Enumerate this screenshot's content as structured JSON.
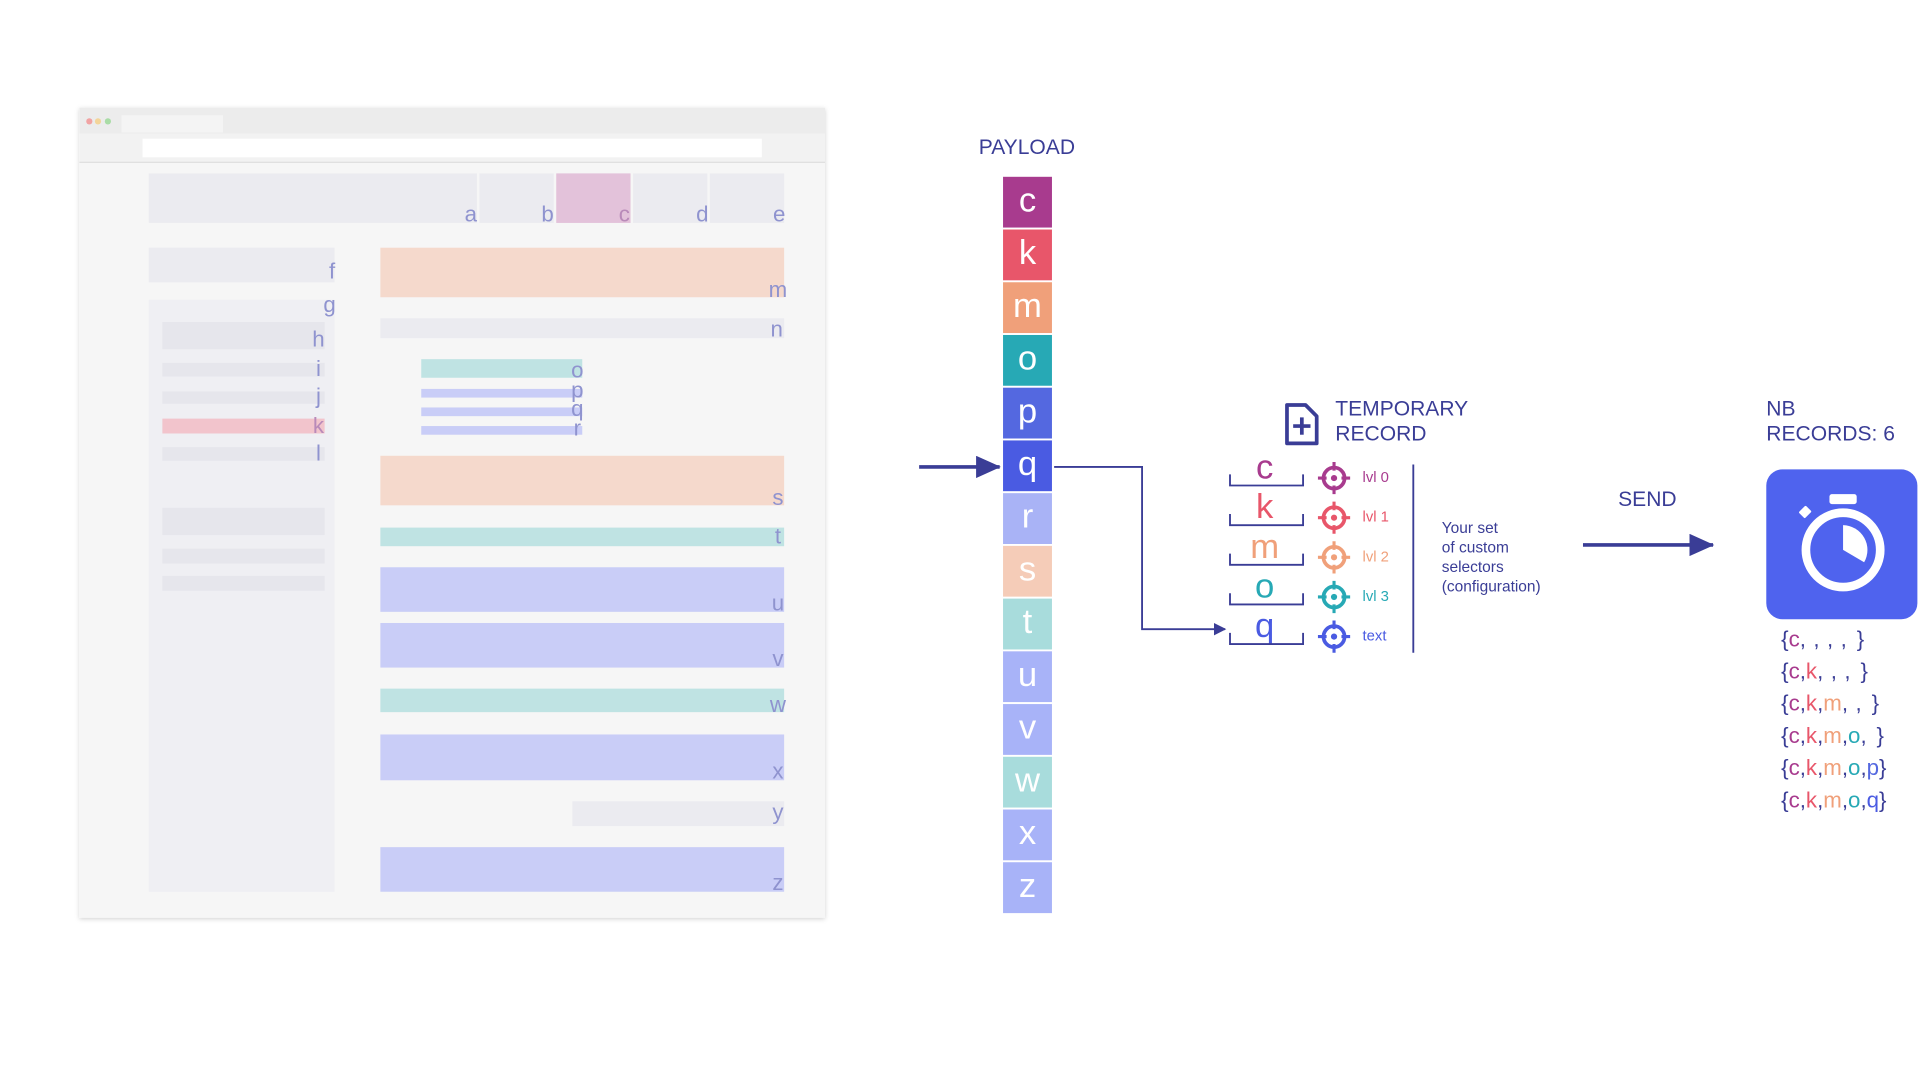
{
  "browser": {
    "labels": [
      "a",
      "b",
      "c",
      "d",
      "e",
      "f",
      "g",
      "h",
      "i",
      "j",
      "k",
      "l",
      "m",
      "n",
      "o",
      "p",
      "q",
      "r",
      "s",
      "t",
      "u",
      "v",
      "w",
      "x",
      "y",
      "z"
    ]
  },
  "payload": {
    "title": "PAYLOAD",
    "items": [
      {
        "letter": "c",
        "color": "#a83b8e"
      },
      {
        "letter": "k",
        "color": "#e8566a"
      },
      {
        "letter": "m",
        "color": "#f0a07a"
      },
      {
        "letter": "o",
        "color": "#27a9b5"
      },
      {
        "letter": "p",
        "color": "#5468e0"
      },
      {
        "letter": "q",
        "color": "#4a5be2"
      },
      {
        "letter": "r",
        "color": "#a9b3f6"
      },
      {
        "letter": "s",
        "color": "#f5ccb8"
      },
      {
        "letter": "t",
        "color": "#a8dcdc"
      },
      {
        "letter": "u",
        "color": "#a8b3f8"
      },
      {
        "letter": "v",
        "color": "#a8b3f8"
      },
      {
        "letter": "w",
        "color": "#a8dcdc"
      },
      {
        "letter": "x",
        "color": "#a8b3f8"
      },
      {
        "letter": "z",
        "color": "#a8b3f8"
      }
    ]
  },
  "temporary_record": {
    "title_lines": [
      "TEMPORARY",
      "RECORD"
    ],
    "rows": [
      {
        "letter": "c",
        "selector": "lvl 0"
      },
      {
        "letter": "k",
        "selector": "lvl 1"
      },
      {
        "letter": "m",
        "selector": "lvl 2"
      },
      {
        "letter": "o",
        "selector": "lvl 3"
      },
      {
        "letter": "q",
        "selector": "text"
      }
    ],
    "note_lines": [
      "Your set",
      "of custom",
      "selectors",
      "(configuration)"
    ]
  },
  "send": "SEND",
  "nb_records": {
    "label_lines": [
      "NB",
      "RECORDS:"
    ],
    "count": 6
  },
  "records": {
    "open": "{",
    "separator": ",",
    "close": "}",
    "rows": [
      [
        "c"
      ],
      [
        "c",
        "k"
      ],
      [
        "c",
        "k",
        "m"
      ],
      [
        "c",
        "k",
        "m",
        "o"
      ],
      [
        "c",
        "k",
        "m",
        "o",
        "p"
      ],
      [
        "c",
        "k",
        "m",
        "o",
        "q"
      ]
    ]
  }
}
